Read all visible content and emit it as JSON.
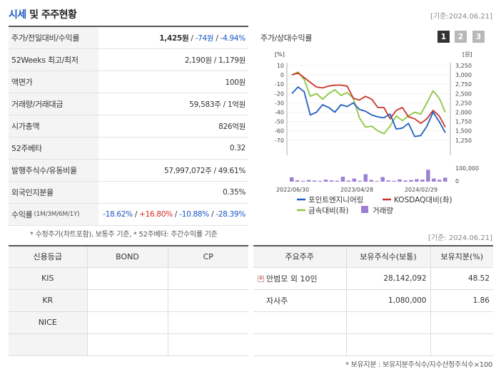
{
  "header": {
    "title_hl": "시세",
    "title_rest": " 및 주주현황",
    "date": "[기준:2024.06.21]"
  },
  "summary": {
    "price": {
      "label": "주가/전일대비/수익률",
      "price": "1,425원",
      "sep1": " / ",
      "change": "-74원",
      "sep2": " / ",
      "rate": "-4.94%"
    },
    "week52": {
      "label": "52Weeks 최고/최저",
      "value": "2,190원 / 1,179원"
    },
    "par": {
      "label": "액면가",
      "value": "100원"
    },
    "volume": {
      "label": "거래량/거래대금",
      "value": "59,583주 / 1억원"
    },
    "mcap": {
      "label": "시가총액",
      "value": "826억원"
    },
    "beta": {
      "label": "52주베타",
      "value": "0.32"
    },
    "shares": {
      "label": "발행주식수/유동비율",
      "value": "57,997,072주 / 49.61%"
    },
    "foreign": {
      "label": "외국인지분율",
      "value": "0.35%"
    },
    "returns": {
      "label": "수익률",
      "label_sm": "(1M/3M/6M/1Y)",
      "r1": "-18.62%",
      "r2": "+16.80%",
      "r3": "-10.88%",
      "r4": "-28.39%",
      "sep": "/ "
    }
  },
  "summary_note": "* 수정주가(차트포함), 보통주 기준, * 52주베타: 주간수익률 기준",
  "chart_panel": {
    "title": "주가/상대수익률",
    "tabs": [
      "1",
      "2",
      "3"
    ],
    "active_tab": "1"
  },
  "chart_data": {
    "type": "line",
    "left_axis_unit": "[%]",
    "right_axis_unit": "[원]",
    "left_ticks": [
      "10",
      "0",
      "-10",
      "-20",
      "-30",
      "-40",
      "-50",
      "-60",
      "-70"
    ],
    "right_ticks": [
      "3,250",
      "3,000",
      "2,750",
      "2,500",
      "2,250",
      "2,000",
      "1,750",
      "1,500",
      "1,250"
    ],
    "volume_ticks": [
      "100,000",
      "0"
    ],
    "x_ticks": [
      "2022/06/30",
      "2023/04/28",
      "2024/02/29"
    ],
    "ylim_left": [
      -75,
      12
    ],
    "series": [
      {
        "name": "포인트엔지니어링",
        "color": "#1f5fbf",
        "values": [
          -20,
          -13,
          -18,
          -43,
          -40,
          -32,
          -35,
          -40,
          -32,
          -34,
          -30,
          -37,
          -39,
          -43,
          -45,
          -46,
          -42,
          -58,
          -57,
          -52,
          -66,
          -65,
          -55,
          -40,
          -50,
          -62
        ]
      },
      {
        "name": "KOSDAQ대비(좌)",
        "color": "#c9342a",
        "values": [
          0,
          2,
          -3,
          -8,
          -13,
          -14,
          -12,
          -11,
          -11,
          -12,
          -25,
          -27,
          -23,
          -26,
          -35,
          -35,
          -47,
          -38,
          -35,
          -45,
          -47,
          -52,
          -47,
          -38,
          -44,
          -56
        ]
      },
      {
        "name": "금속대비(좌)",
        "color": "#8cc63f",
        "values": [
          0,
          3,
          -5,
          -23,
          -20,
          -26,
          -20,
          -16,
          -22,
          -19,
          -25,
          -46,
          -56,
          -55,
          -60,
          -63,
          -55,
          -44,
          -49,
          -44,
          -40,
          -42,
          -30,
          -17,
          -25,
          -40
        ]
      },
      {
        "name": "거래량",
        "color": "#9c7fd3",
        "values": [
          32000,
          10000,
          6000,
          12000,
          8000,
          6000,
          15000,
          9000,
          7000,
          36000,
          8000,
          23000,
          7000,
          55000,
          13000,
          5000,
          34000,
          9000,
          6000,
          17000,
          9000,
          12000,
          18000,
          15000,
          88000,
          23000,
          14000,
          30000
        ]
      }
    ]
  },
  "chart_date": "[기준: 2024.06.21]",
  "credit": {
    "headers": [
      "신용등급",
      "BOND",
      "CP"
    ],
    "rows": [
      [
        "KIS",
        "",
        ""
      ],
      [
        "KR",
        "",
        ""
      ],
      [
        "NICE",
        "",
        ""
      ],
      [
        "",
        "",
        ""
      ]
    ]
  },
  "holders": {
    "headers": [
      "주요주주",
      "보유주식수(보통)",
      "보유지분(%)"
    ],
    "rows": [
      {
        "name": "안범모 외 10인",
        "shares": "28,142,092",
        "pct": "48.52",
        "expand": "+"
      },
      {
        "name": "자사주",
        "shares": "1,080,000",
        "pct": "1.86",
        "expand": ""
      }
    ]
  },
  "holders_note": "* 보유지분 : 보유지분주식수/지수산정주식수×100"
}
